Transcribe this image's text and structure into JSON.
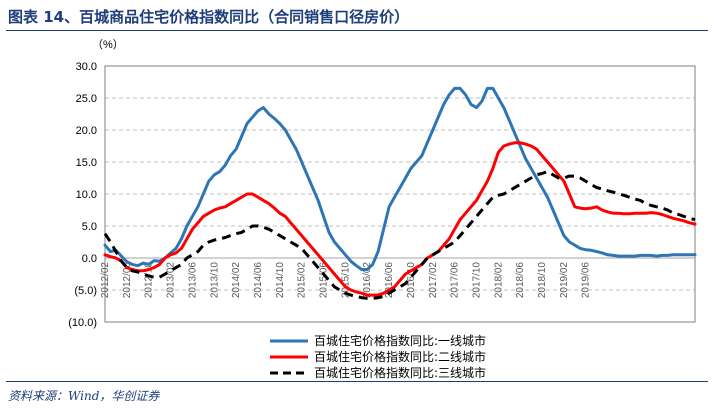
{
  "figure": {
    "title": "图表 14、百城商品住宅价格指数同比（合同销售口径房价）",
    "source": "资料来源：Wind，华创证券"
  },
  "chart_data": {
    "type": "line",
    "ylabel": "（%）",
    "ylim": [
      -10,
      30
    ],
    "yticks": [
      "30.0",
      "25.0",
      "20.0",
      "15.0",
      "10.0",
      "5.0",
      "0.0",
      "(5.0)",
      "(10.0)"
    ],
    "ytick_values": [
      30,
      25,
      20,
      15,
      10,
      5,
      0,
      -5,
      -10
    ],
    "grid": "horizontal-dashed",
    "legend_position": "bottom-center",
    "xticks": [
      "2012/02",
      "2012/06",
      "2012/10",
      "2013/02",
      "2013/06",
      "2013/10",
      "2014/02",
      "2014/06",
      "2014/10",
      "2015/02",
      "2015/06",
      "2015/10",
      "2016/02",
      "2016/06",
      "2016/10",
      "2017/02",
      "2017/06",
      "2017/10",
      "2018/02",
      "2018/06",
      "2018/10",
      "2019/02",
      "2019/06"
    ],
    "x_start": "2012/02",
    "x_end": "2019/06",
    "series": [
      {
        "name": "百城住宅价格指数同比:一线城市",
        "color": "#2e75b6",
        "style": "solid",
        "values": [
          2.0,
          1.0,
          1.2,
          0.3,
          -0.6,
          -1.0,
          -1.2,
          -0.8,
          -1.0,
          -0.4,
          -0.5,
          0.0,
          0.8,
          1.5,
          3.0,
          5.0,
          6.5,
          8.0,
          10.0,
          12.0,
          13.0,
          13.5,
          14.5,
          16.0,
          17.0,
          19.0,
          21.0,
          22.0,
          23.0,
          23.5,
          22.5,
          21.8,
          21.0,
          20.0,
          18.5,
          17.0,
          15.0,
          13.0,
          11.0,
          9.0,
          6.5,
          4.0,
          2.5,
          1.5,
          0.5,
          -0.5,
          -1.2,
          -1.8,
          -1.8,
          -1.0,
          1.0,
          4.5,
          8.0,
          9.5,
          11.0,
          12.5,
          14.0,
          15.0,
          16.0,
          18.0,
          20.0,
          22.0,
          24.0,
          25.5,
          26.5,
          26.5,
          25.5,
          24.0,
          23.5,
          24.5,
          26.5,
          26.5,
          25.0,
          23.5,
          21.5,
          19.5,
          17.5,
          15.5,
          14.0,
          12.5,
          11.0,
          9.5,
          7.5,
          5.5,
          3.5,
          2.5,
          2.0,
          1.5,
          1.3,
          1.2,
          1.0,
          0.8,
          0.5,
          0.4,
          0.3,
          0.3,
          0.3,
          0.3,
          0.4,
          0.4,
          0.4,
          0.3,
          0.4,
          0.4,
          0.5,
          0.5,
          0.5,
          0.5,
          0.5
        ]
      },
      {
        "name": "百城住宅价格指数同比:二线城市",
        "color": "#ff0000",
        "style": "solid",
        "values": [
          0.5,
          0.2,
          0.0,
          -0.5,
          -1.5,
          -1.8,
          -2.0,
          -2.0,
          -1.8,
          -1.5,
          -1.0,
          0.0,
          0.5,
          0.8,
          1.5,
          3.0,
          4.5,
          5.5,
          6.5,
          7.0,
          7.5,
          7.8,
          8.0,
          8.5,
          9.0,
          9.5,
          10.0,
          10.0,
          9.5,
          9.0,
          8.5,
          7.8,
          7.0,
          6.5,
          5.5,
          4.5,
          3.5,
          2.5,
          1.5,
          0.5,
          -0.5,
          -1.5,
          -2.5,
          -3.5,
          -4.5,
          -5.0,
          -5.3,
          -5.5,
          -5.8,
          -5.8,
          -5.8,
          -5.5,
          -5.0,
          -4.5,
          -3.5,
          -2.5,
          -2.0,
          -1.5,
          -1.0,
          0.0,
          0.5,
          1.0,
          2.0,
          3.0,
          4.5,
          6.0,
          7.0,
          8.0,
          9.0,
          10.5,
          12.0,
          14.0,
          16.5,
          17.5,
          17.8,
          18.0,
          18.0,
          17.8,
          17.5,
          17.0,
          16.0,
          15.0,
          14.0,
          13.0,
          12.0,
          10.0,
          8.0,
          7.8,
          7.7,
          7.8,
          8.0,
          7.5,
          7.2,
          7.0,
          7.0,
          6.9,
          6.9,
          7.0,
          7.0,
          7.0,
          7.1,
          7.0,
          6.8,
          6.5,
          6.2,
          6.0,
          5.8,
          5.5,
          5.3
        ]
      },
      {
        "name": "百城住宅价格指数同比:三线城市",
        "color": "#000000",
        "style": "dashed",
        "values": [
          3.8,
          2.5,
          1.0,
          -0.5,
          -1.5,
          -2.0,
          -2.2,
          -2.5,
          -2.8,
          -3.0,
          -3.0,
          -2.5,
          -2.0,
          -1.5,
          -1.0,
          0.0,
          0.5,
          1.0,
          2.0,
          2.5,
          2.8,
          3.0,
          3.2,
          3.5,
          3.8,
          4.0,
          4.5,
          5.0,
          5.0,
          4.8,
          4.5,
          4.0,
          3.5,
          3.0,
          2.5,
          2.0,
          1.5,
          0.5,
          -0.5,
          -1.5,
          -2.5,
          -3.5,
          -4.5,
          -5.0,
          -5.5,
          -5.8,
          -6.0,
          -6.2,
          -6.3,
          -6.3,
          -6.2,
          -6.0,
          -5.5,
          -5.0,
          -4.5,
          -4.0,
          -3.0,
          -2.0,
          -1.0,
          0.0,
          0.5,
          1.0,
          1.5,
          2.0,
          2.5,
          3.5,
          4.5,
          5.5,
          6.5,
          7.5,
          8.5,
          9.5,
          9.8,
          10.0,
          10.5,
          11.0,
          11.5,
          12.0,
          12.5,
          13.0,
          13.2,
          13.5,
          13.0,
          12.5,
          12.5,
          12.8,
          12.8,
          12.5,
          12.0,
          11.5,
          11.0,
          10.8,
          10.5,
          10.3,
          10.0,
          9.8,
          9.5,
          9.2,
          9.0,
          8.5,
          8.2,
          8.0,
          7.8,
          7.5,
          7.0,
          6.8,
          6.5,
          6.2,
          6.0
        ]
      }
    ]
  }
}
